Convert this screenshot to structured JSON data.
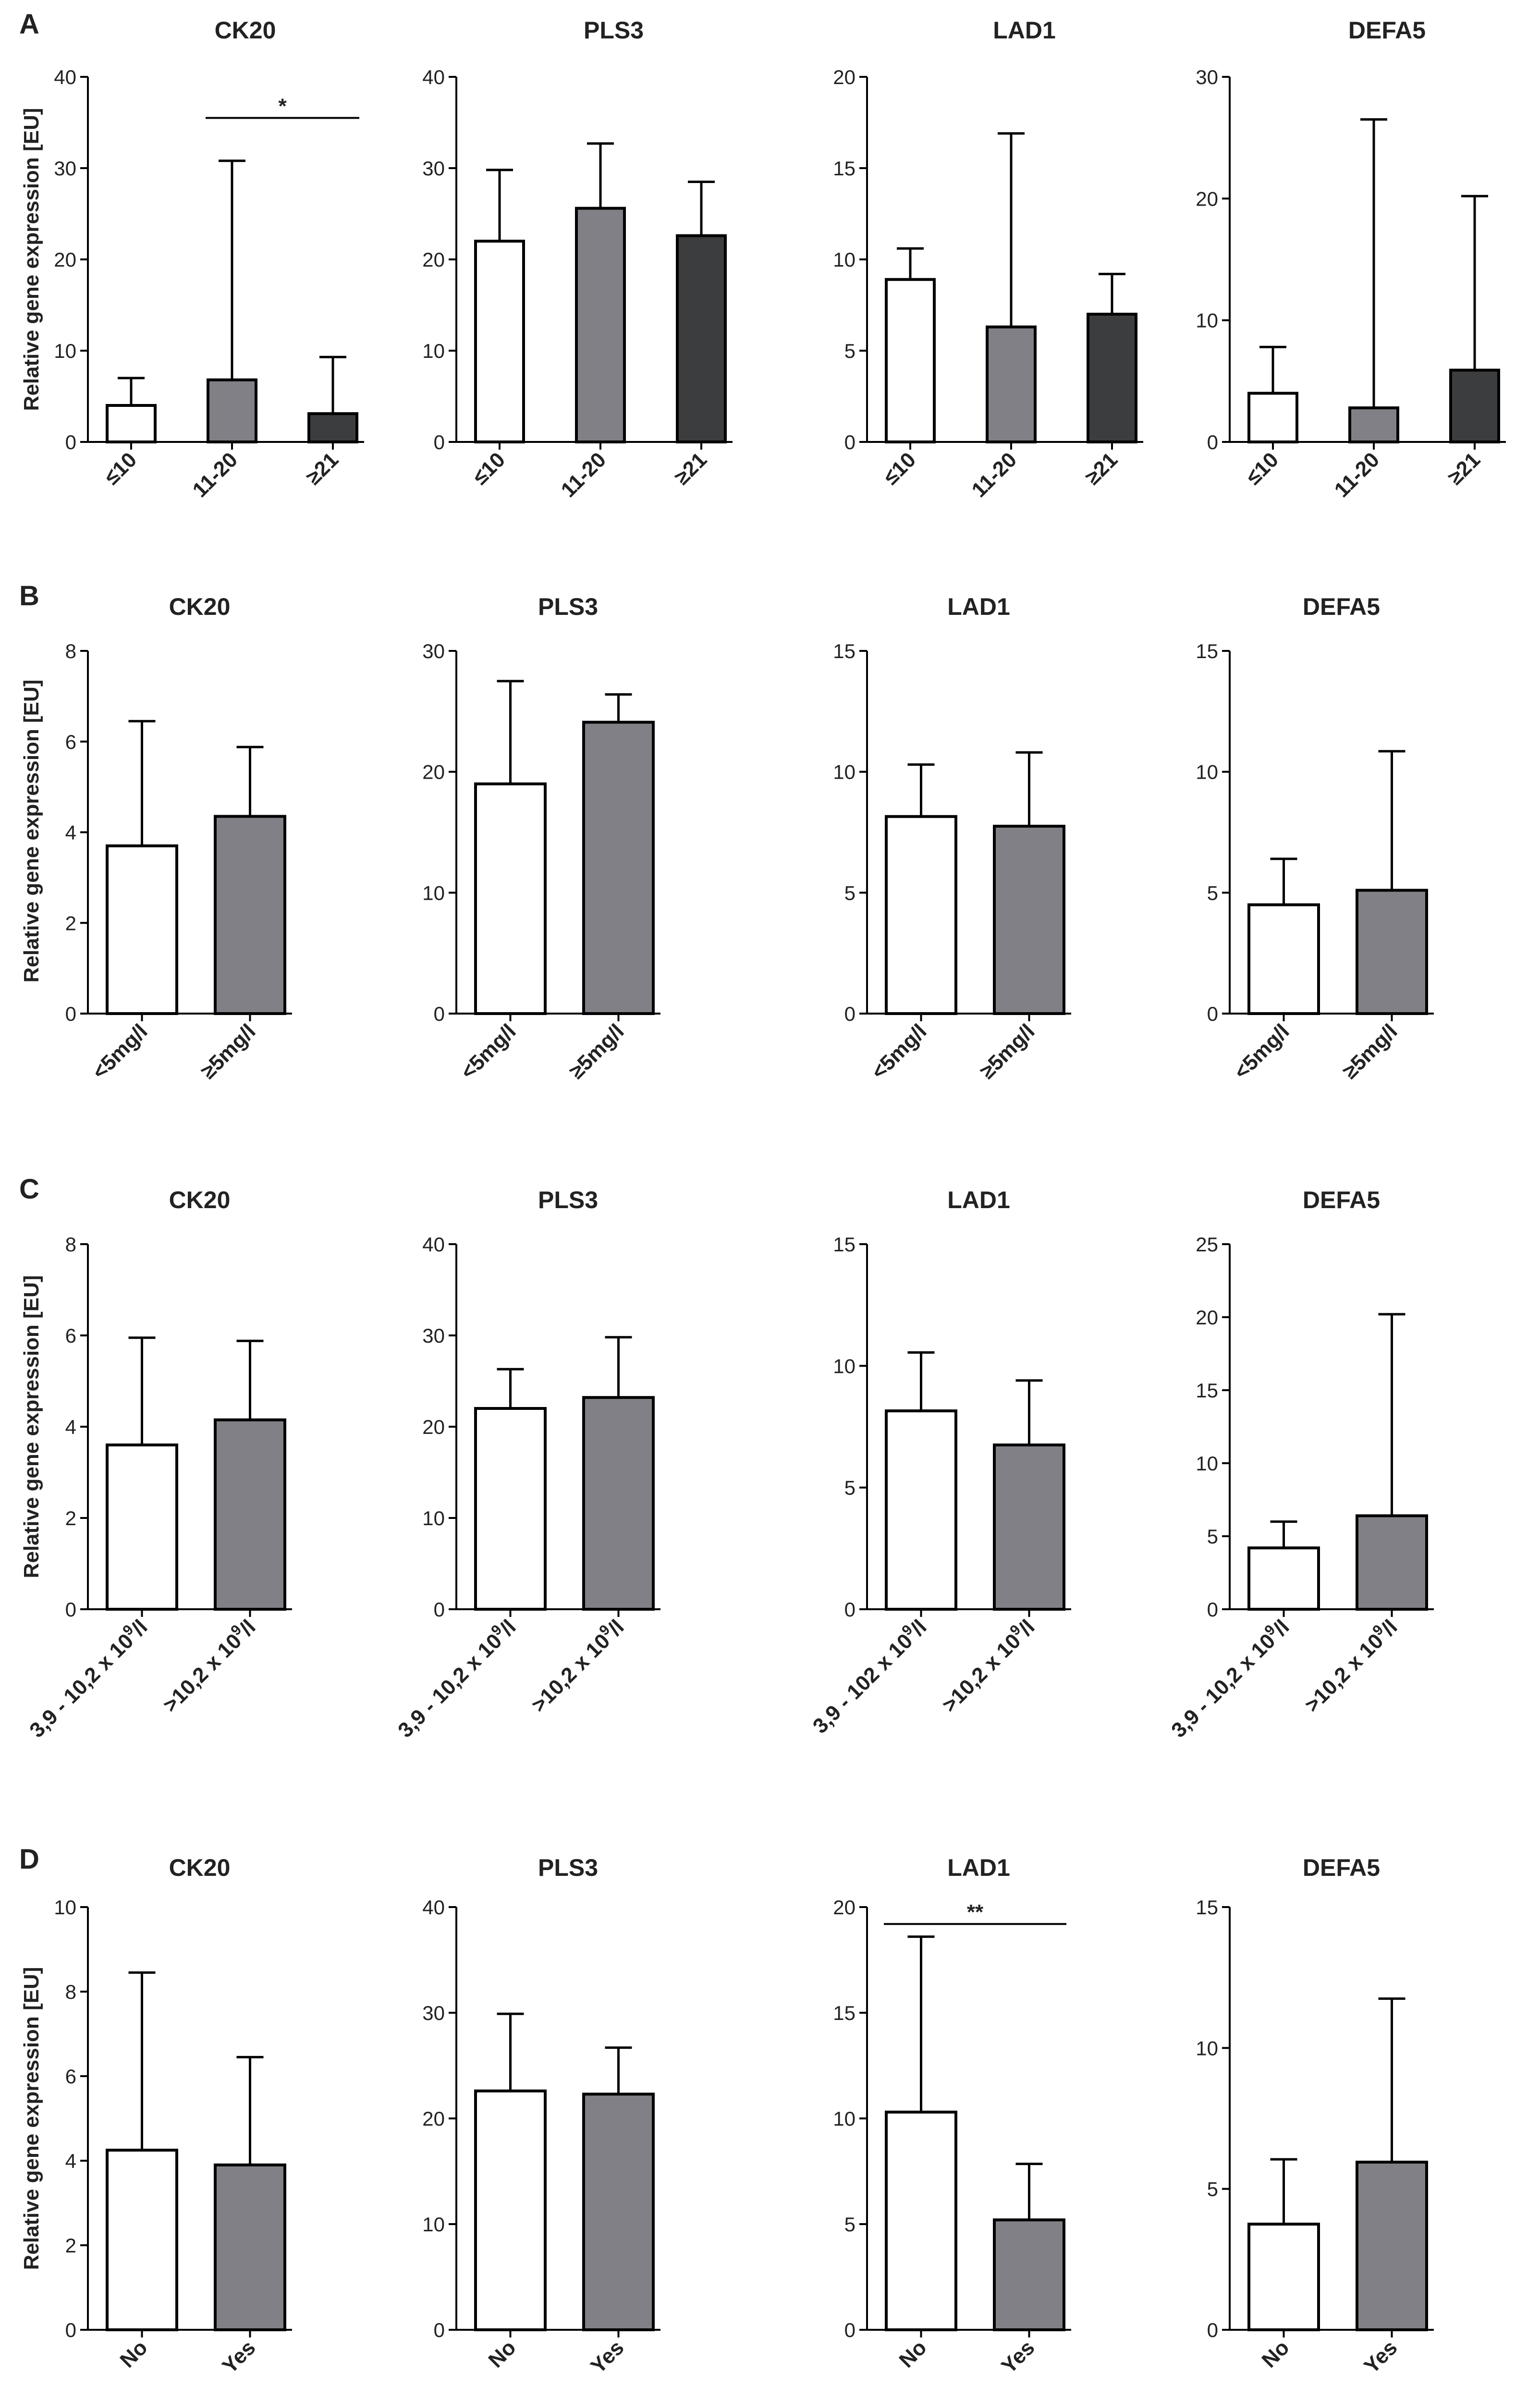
{
  "figure": {
    "y_axis_label": "Relative gene expression [EU]",
    "colors": {
      "white": "#ffffff",
      "grey": "#818086",
      "dark": "#3c3d3f",
      "ink": "#222222"
    }
  },
  "panels": [
    {
      "letter": "A",
      "charts": [
        {
          "type": "bar",
          "title": "CK20",
          "ylim": [
            0,
            40
          ],
          "yticks": [
            0,
            10,
            20,
            30,
            40
          ],
          "ytick_labels": [
            "0",
            "10",
            "20",
            "30",
            "40"
          ],
          "categories": [
            "≤10",
            "11-20",
            "≥21"
          ],
          "values": [
            4.0,
            6.8,
            3.1
          ],
          "errors": [
            7.0,
            30.8,
            9.3
          ],
          "colors": [
            "white",
            "grey",
            "dark"
          ],
          "significance": {
            "label": "*",
            "from": 1,
            "to": 2,
            "y": 35.5
          }
        },
        {
          "type": "bar",
          "title": "PLS3",
          "ylim": [
            0,
            40
          ],
          "yticks": [
            0,
            10,
            20,
            30,
            40
          ],
          "ytick_labels": [
            "0",
            "10",
            "20",
            "30",
            "40"
          ],
          "categories": [
            "≤10",
            "11-20",
            "≥21"
          ],
          "values": [
            22.0,
            25.6,
            22.6
          ],
          "errors": [
            29.8,
            32.7,
            28.5
          ],
          "colors": [
            "white",
            "grey",
            "dark"
          ]
        },
        {
          "type": "bar",
          "title": "LAD1",
          "ylim": [
            0,
            20
          ],
          "yticks": [
            0,
            5,
            10,
            15,
            20
          ],
          "ytick_labels": [
            "0",
            "5",
            "10",
            "15",
            "20"
          ],
          "categories": [
            "≤10",
            "11-20",
            "≥21"
          ],
          "values": [
            8.9,
            6.3,
            7.0
          ],
          "errors": [
            10.6,
            16.9,
            9.2
          ],
          "colors": [
            "white",
            "grey",
            "dark"
          ]
        },
        {
          "type": "bar",
          "title": "DEFA5",
          "ylim": [
            0,
            30
          ],
          "yticks": [
            0,
            10,
            20,
            30
          ],
          "ytick_labels": [
            "0",
            "10",
            "20",
            "30"
          ],
          "categories": [
            "≤10",
            "11-20",
            "≥21"
          ],
          "values": [
            4.0,
            2.8,
            5.9
          ],
          "errors": [
            7.8,
            26.5,
            20.2
          ],
          "colors": [
            "white",
            "grey",
            "dark"
          ]
        }
      ]
    },
    {
      "letter": "B",
      "charts": [
        {
          "type": "bar",
          "title": "CK20",
          "ylim": [
            0,
            8
          ],
          "yticks": [
            0,
            2,
            4,
            6,
            8
          ],
          "ytick_labels": [
            "0",
            "2",
            "4",
            "6",
            "8"
          ],
          "categories": [
            "<5mg/l",
            "≥5mg/l"
          ],
          "values": [
            3.7,
            4.35
          ],
          "errors": [
            6.45,
            5.88
          ],
          "colors": [
            "white",
            "grey"
          ]
        },
        {
          "type": "bar",
          "title": "PLS3",
          "ylim": [
            0,
            30
          ],
          "yticks": [
            0,
            10,
            20,
            30
          ],
          "ytick_labels": [
            "0",
            "10",
            "20",
            "30"
          ],
          "categories": [
            "<5mg/l",
            "≥5mg/l"
          ],
          "values": [
            19.0,
            24.1
          ],
          "errors": [
            27.5,
            26.4
          ],
          "colors": [
            "white",
            "grey"
          ]
        },
        {
          "type": "bar",
          "title": "LAD1",
          "ylim": [
            0,
            15
          ],
          "yticks": [
            0,
            5,
            10,
            15
          ],
          "ytick_labels": [
            "0",
            "5",
            "10",
            "15"
          ],
          "categories": [
            "<5mg/l",
            "≥5mg/l"
          ],
          "values": [
            8.15,
            7.75
          ],
          "errors": [
            10.3,
            10.8
          ],
          "colors": [
            "white",
            "grey"
          ]
        },
        {
          "type": "bar",
          "title": "DEFA5",
          "ylim": [
            0,
            15
          ],
          "yticks": [
            0,
            5,
            10,
            15
          ],
          "ytick_labels": [
            "0",
            "5",
            "10",
            "15"
          ],
          "categories": [
            "<5mg/l",
            "≥5mg/l"
          ],
          "values": [
            4.5,
            5.1
          ],
          "errors": [
            6.4,
            10.85
          ],
          "colors": [
            "white",
            "grey"
          ]
        }
      ]
    },
    {
      "letter": "C",
      "charts": [
        {
          "type": "bar",
          "title": "CK20",
          "ylim": [
            0,
            8
          ],
          "yticks": [
            0,
            2,
            4,
            6,
            8
          ],
          "ytick_labels": [
            "0",
            "2",
            "4",
            "6",
            "8"
          ],
          "categories": [
            {
              "base": "3,9 - 10,2 x 10",
              "sup": "9",
              "tail": "/l"
            },
            {
              "base": ">10,2 x 10",
              "sup": "9",
              "tail": "/l"
            }
          ],
          "values": [
            3.6,
            4.15
          ],
          "errors": [
            5.95,
            5.88
          ],
          "colors": [
            "white",
            "grey"
          ]
        },
        {
          "type": "bar",
          "title": "PLS3",
          "ylim": [
            0,
            40
          ],
          "yticks": [
            0,
            10,
            20,
            30,
            40
          ],
          "ytick_labels": [
            "0",
            "10",
            "20",
            "30",
            "40"
          ],
          "categories": [
            {
              "base": "3,9 - 10,2 x 10",
              "sup": "9",
              "tail": "/l"
            },
            {
              "base": ">10,2 x 10",
              "sup": "9",
              "tail": "/l"
            }
          ],
          "values": [
            22.0,
            23.2
          ],
          "errors": [
            26.3,
            29.8
          ],
          "colors": [
            "white",
            "grey"
          ]
        },
        {
          "type": "bar",
          "title": "LAD1",
          "ylim": [
            0,
            15
          ],
          "yticks": [
            0,
            5,
            10,
            15
          ],
          "ytick_labels": [
            "0",
            "5",
            "10",
            "15"
          ],
          "categories": [
            {
              "base": "3,9 - 102 x 10",
              "sup": "9",
              "tail": "/l"
            },
            {
              "base": ">10,2 x 10",
              "sup": "9",
              "tail": "/l"
            }
          ],
          "values": [
            8.15,
            6.75
          ],
          "errors": [
            10.55,
            9.4
          ],
          "colors": [
            "white",
            "grey"
          ]
        },
        {
          "type": "bar",
          "title": "DEFA5",
          "ylim": [
            0,
            25
          ],
          "yticks": [
            0,
            5,
            10,
            15,
            20,
            25
          ],
          "ytick_labels": [
            "0",
            "5",
            "10",
            "15",
            "20",
            "25"
          ],
          "categories": [
            {
              "base": "3,9 - 10,2 x 10",
              "sup": "9",
              "tail": "/l"
            },
            {
              "base": ">10,2 x 10",
              "sup": "9",
              "tail": "/l"
            }
          ],
          "values": [
            4.2,
            6.4
          ],
          "errors": [
            6.0,
            20.2
          ],
          "colors": [
            "white",
            "grey"
          ]
        }
      ]
    },
    {
      "letter": "D",
      "charts": [
        {
          "type": "bar",
          "title": "CK20",
          "ylim": [
            0,
            10
          ],
          "yticks": [
            0,
            2,
            4,
            6,
            8,
            10
          ],
          "ytick_labels": [
            "0",
            "2",
            "4",
            "6",
            "8",
            "10"
          ],
          "categories": [
            "No",
            "Yes"
          ],
          "values": [
            4.25,
            3.9
          ],
          "errors": [
            8.45,
            6.45
          ],
          "colors": [
            "white",
            "grey"
          ]
        },
        {
          "type": "bar",
          "title": "PLS3",
          "ylim": [
            0,
            40
          ],
          "yticks": [
            0,
            10,
            20,
            30,
            40
          ],
          "ytick_labels": [
            "0",
            "10",
            "20",
            "30",
            "40"
          ],
          "categories": [
            "No",
            "Yes"
          ],
          "values": [
            22.6,
            22.3
          ],
          "errors": [
            29.9,
            26.7
          ],
          "colors": [
            "white",
            "grey"
          ]
        },
        {
          "type": "bar",
          "title": "LAD1",
          "ylim": [
            0,
            20
          ],
          "yticks": [
            0,
            5,
            10,
            15,
            20
          ],
          "ytick_labels": [
            "0",
            "5",
            "10",
            "15",
            "20"
          ],
          "categories": [
            "No",
            "Yes"
          ],
          "values": [
            10.3,
            5.2
          ],
          "errors": [
            18.6,
            7.85
          ],
          "colors": [
            "white",
            "grey"
          ],
          "significance": {
            "label": "**",
            "from": 0,
            "to": 1,
            "y": 19.2
          }
        },
        {
          "type": "bar",
          "title": "DEFA5",
          "ylim": [
            0,
            15
          ],
          "yticks": [
            0,
            5,
            10,
            15
          ],
          "ytick_labels": [
            "0",
            "5",
            "10",
            "15"
          ],
          "categories": [
            "No",
            "Yes"
          ],
          "values": [
            3.75,
            5.95
          ],
          "errors": [
            6.05,
            11.75
          ],
          "colors": [
            "white",
            "grey"
          ]
        }
      ]
    }
  ]
}
